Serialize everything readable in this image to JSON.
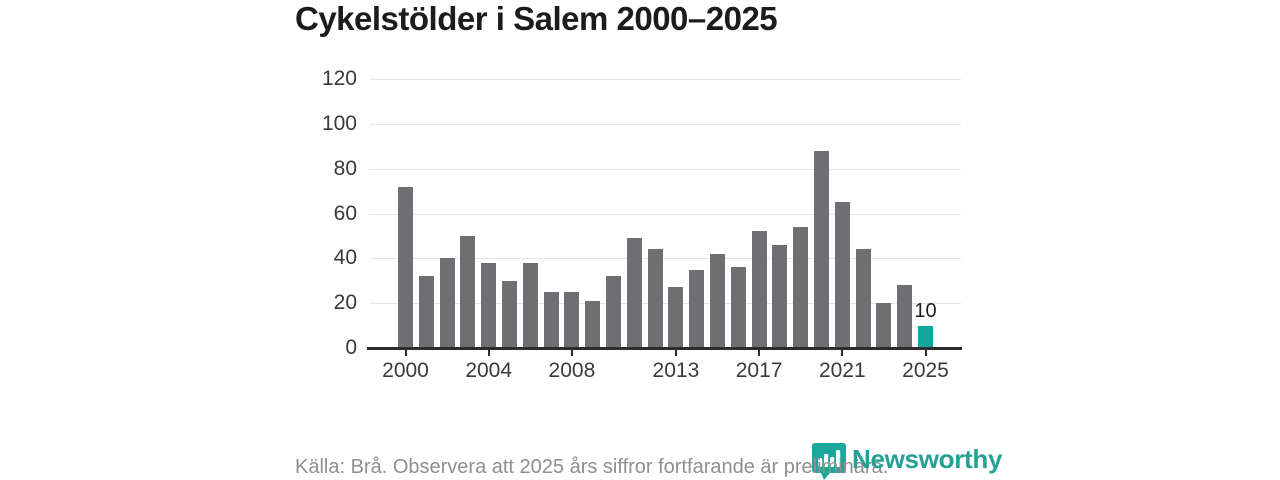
{
  "title": "Cykelstölder i Salem 2000–2025",
  "chart_data": {
    "type": "bar",
    "title": "Cykelstölder i Salem 2000–2025",
    "x": [
      2000,
      2001,
      2002,
      2003,
      2004,
      2005,
      2006,
      2007,
      2008,
      2009,
      2010,
      2011,
      2012,
      2013,
      2014,
      2015,
      2016,
      2017,
      2018,
      2019,
      2020,
      2021,
      2022,
      2023,
      2024,
      2025
    ],
    "values": [
      72,
      32,
      40,
      50,
      38,
      30,
      38,
      25,
      25,
      21,
      32,
      49,
      44,
      27,
      35,
      42,
      36,
      52,
      46,
      54,
      88,
      65,
      44,
      20,
      28,
      10
    ],
    "highlight_index": 25,
    "highlight_value_label": "10",
    "xlabel": "",
    "ylabel": "",
    "ylim": [
      0,
      120
    ],
    "ytick_step": 20,
    "ytick_labels": [
      "0",
      "20",
      "40",
      "60",
      "80",
      "100",
      "120"
    ],
    "xtick_years": [
      2000,
      2004,
      2008,
      2013,
      2017,
      2021,
      2025
    ],
    "grid": true,
    "legend": "none",
    "bar_color": "#6e6e73",
    "highlight_color": "#12a79b",
    "gridline_color": "#e5e5e5",
    "axis_color": "#2d2d2d"
  },
  "footer": {
    "source_note": "Källa: Brå. Observera att 2025 års siffror fortfarande är preliminära."
  },
  "logo": {
    "text": "Newsworthy",
    "color": "#24a095",
    "icon": "newsworthy-pin-barchart-icon"
  }
}
